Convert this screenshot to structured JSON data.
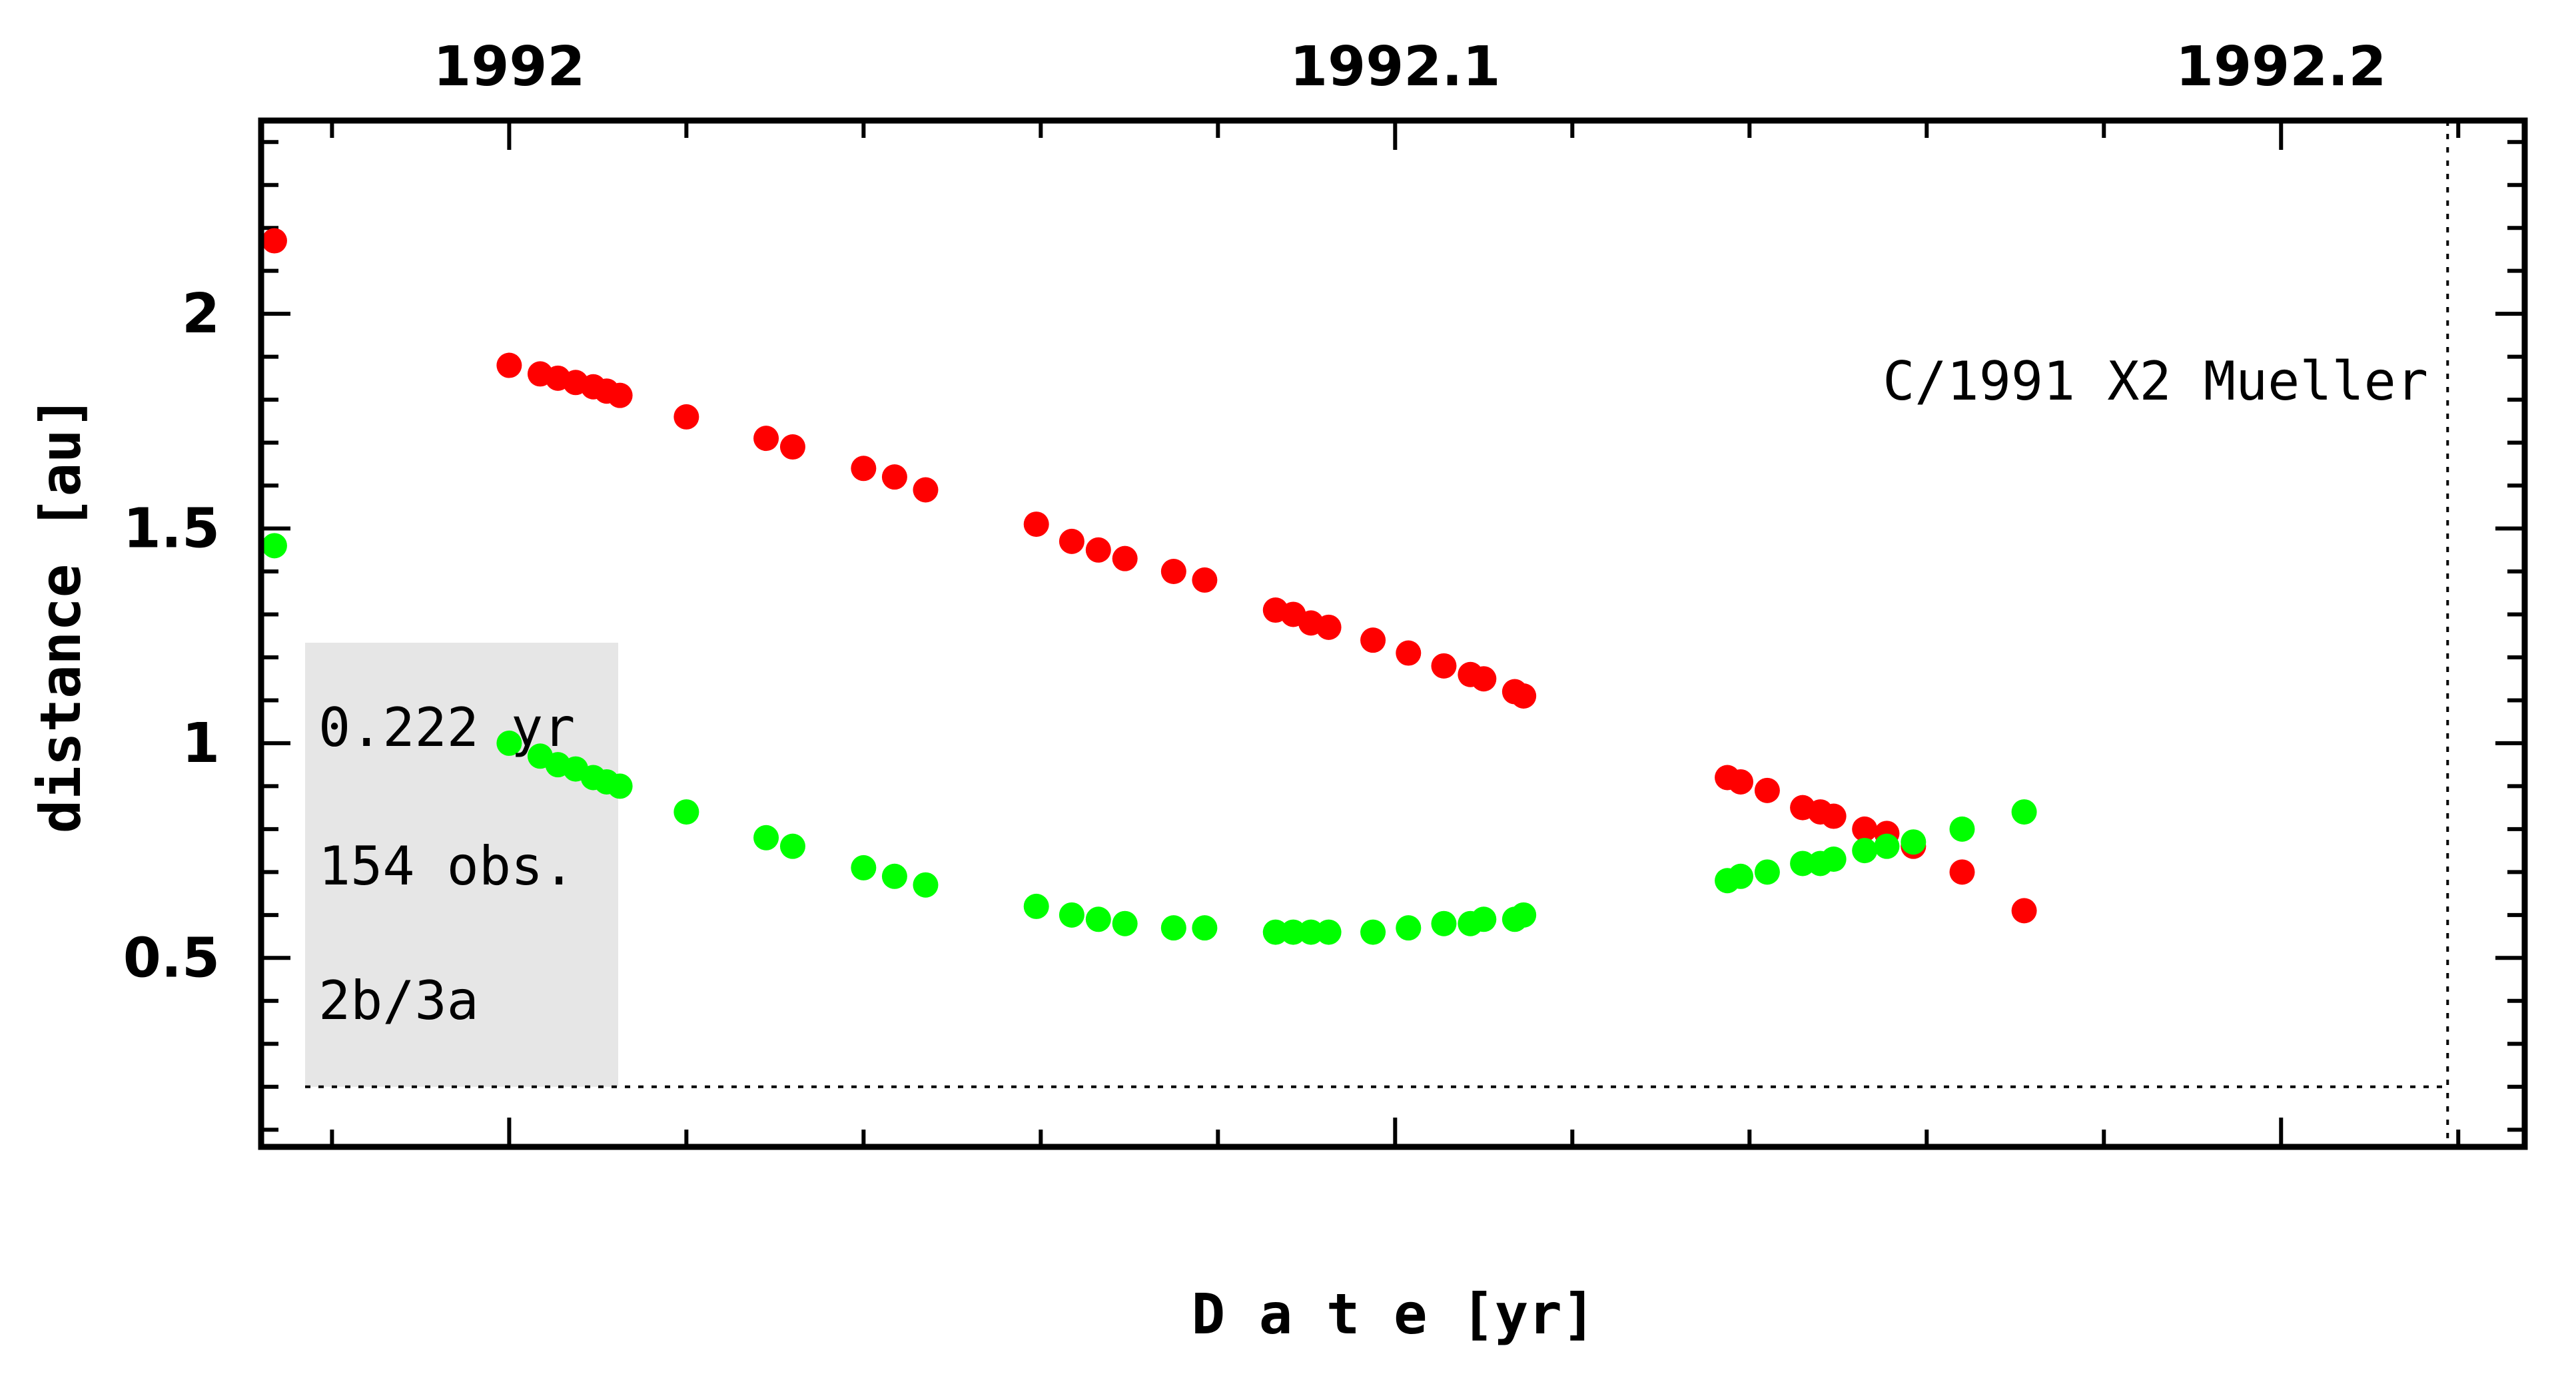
{
  "chart_data": {
    "type": "scatter",
    "title": "C/1991 X2 Mueller",
    "xlabel": "D a t e [yr]",
    "ylabel": "distance [au]",
    "xlim": [
      1991.972,
      1992.2275
    ],
    "ylim": [
      0.06,
      2.45
    ],
    "x_ticks": [
      1992.0,
      1992.1,
      1992.2
    ],
    "x_tick_labels": [
      "1992",
      "1992.1",
      "1992.2"
    ],
    "y_ticks": [
      0.5,
      1.0,
      1.5,
      2.0
    ],
    "y_tick_labels": [
      "0.5",
      "1",
      "1.5",
      "2"
    ],
    "reference_lines": {
      "vertical_x": 1992.2188,
      "horizontal_y": 0.2
    },
    "info_box": {
      "lines": [
        "0.222 yr",
        "154 obs.",
        "2b/3a"
      ],
      "color": "#e6e6e6"
    },
    "series": [
      {
        "color": "#ff0000",
        "points": [
          [
            1991.9735,
            2.17
          ],
          [
            1992.0,
            1.88
          ],
          [
            1992.0035,
            1.86
          ],
          [
            1992.0055,
            1.85
          ],
          [
            1992.0075,
            1.84
          ],
          [
            1992.0095,
            1.83
          ],
          [
            1992.011,
            1.82
          ],
          [
            1992.0125,
            1.81
          ],
          [
            1992.02,
            1.76
          ],
          [
            1992.029,
            1.71
          ],
          [
            1992.032,
            1.69
          ],
          [
            1992.04,
            1.64
          ],
          [
            1992.0435,
            1.62
          ],
          [
            1992.047,
            1.59
          ],
          [
            1992.0595,
            1.51
          ],
          [
            1992.0635,
            1.47
          ],
          [
            1992.0665,
            1.45
          ],
          [
            1992.0695,
            1.43
          ],
          [
            1992.075,
            1.4
          ],
          [
            1992.0785,
            1.38
          ],
          [
            1992.0865,
            1.31
          ],
          [
            1992.0885,
            1.3
          ],
          [
            1992.0905,
            1.28
          ],
          [
            1992.0925,
            1.27
          ],
          [
            1992.0975,
            1.24
          ],
          [
            1992.1015,
            1.21
          ],
          [
            1992.1055,
            1.18
          ],
          [
            1992.1085,
            1.16
          ],
          [
            1992.11,
            1.15
          ],
          [
            1992.1135,
            1.12
          ],
          [
            1992.1145,
            1.11
          ],
          [
            1992.1375,
            0.92
          ],
          [
            1992.139,
            0.91
          ],
          [
            1992.142,
            0.89
          ],
          [
            1992.146,
            0.85
          ],
          [
            1992.148,
            0.84
          ],
          [
            1992.1495,
            0.83
          ],
          [
            1992.153,
            0.8
          ],
          [
            1992.1555,
            0.79
          ],
          [
            1992.1585,
            0.76
          ],
          [
            1992.164,
            0.7
          ],
          [
            1992.171,
            0.61
          ]
        ]
      },
      {
        "color": "#00ff00",
        "points": [
          [
            1991.9735,
            1.46
          ],
          [
            1992.0,
            1.0
          ],
          [
            1992.0035,
            0.97
          ],
          [
            1992.0055,
            0.95
          ],
          [
            1992.0075,
            0.94
          ],
          [
            1992.0095,
            0.92
          ],
          [
            1992.011,
            0.91
          ],
          [
            1992.0125,
            0.9
          ],
          [
            1992.02,
            0.84
          ],
          [
            1992.029,
            0.78
          ],
          [
            1992.032,
            0.76
          ],
          [
            1992.04,
            0.71
          ],
          [
            1992.0435,
            0.69
          ],
          [
            1992.047,
            0.67
          ],
          [
            1992.0595,
            0.62
          ],
          [
            1992.0635,
            0.6
          ],
          [
            1992.0665,
            0.59
          ],
          [
            1992.0695,
            0.58
          ],
          [
            1992.075,
            0.57
          ],
          [
            1992.0785,
            0.57
          ],
          [
            1992.0865,
            0.56
          ],
          [
            1992.0885,
            0.56
          ],
          [
            1992.0905,
            0.56
          ],
          [
            1992.0925,
            0.56
          ],
          [
            1992.0975,
            0.56
          ],
          [
            1992.1015,
            0.57
          ],
          [
            1992.1055,
            0.58
          ],
          [
            1992.1085,
            0.58
          ],
          [
            1992.11,
            0.59
          ],
          [
            1992.1135,
            0.59
          ],
          [
            1992.1145,
            0.6
          ],
          [
            1992.1375,
            0.68
          ],
          [
            1992.139,
            0.69
          ],
          [
            1992.142,
            0.7
          ],
          [
            1992.146,
            0.72
          ],
          [
            1992.148,
            0.72
          ],
          [
            1992.1495,
            0.73
          ],
          [
            1992.153,
            0.75
          ],
          [
            1992.1555,
            0.76
          ],
          [
            1992.1585,
            0.77
          ],
          [
            1992.164,
            0.8
          ],
          [
            1992.171,
            0.84
          ]
        ]
      }
    ]
  }
}
